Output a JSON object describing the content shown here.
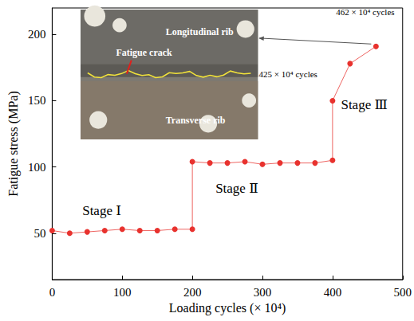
{
  "chart_data": {
    "type": "line",
    "x_label": "Loading cycles (× 10⁴)",
    "y_label": "Fatigue stress (MPa)",
    "x": [
      0,
      25,
      50,
      75,
      100,
      125,
      150,
      175,
      200,
      200,
      225,
      250,
      275,
      300,
      325,
      350,
      375,
      400,
      400,
      425,
      462
    ],
    "values": [
      52,
      50,
      51,
      52,
      53,
      52,
      52,
      53,
      53,
      104,
      103,
      103,
      104,
      102,
      103,
      103,
      103,
      105,
      150,
      178,
      191
    ],
    "color": "#e8322e",
    "marker": "circle",
    "line_style": "solid",
    "xlim": [
      0,
      500
    ],
    "xticks": [
      0,
      100,
      200,
      300,
      400,
      500
    ],
    "ylim": [
      15,
      220
    ],
    "yticks": [
      50,
      100,
      150,
      200
    ],
    "grid": false,
    "annotations": [
      {
        "text": "Stage Ⅰ",
        "x": 43,
        "y": 67
      },
      {
        "text": "Stage Ⅱ",
        "x": 233,
        "y": 84
      },
      {
        "text": "Stage Ⅲ",
        "x": 412,
        "y": 147
      },
      {
        "text": "462 × 10⁴ cycles",
        "x": 405,
        "y": 217
      },
      {
        "text": "425 × 10⁴ cycles",
        "x": 295,
        "y": 170
      }
    ],
    "inset_labels": [
      "Longitudinal rib",
      "Fatigue crack",
      "Transverse rib"
    ]
  }
}
